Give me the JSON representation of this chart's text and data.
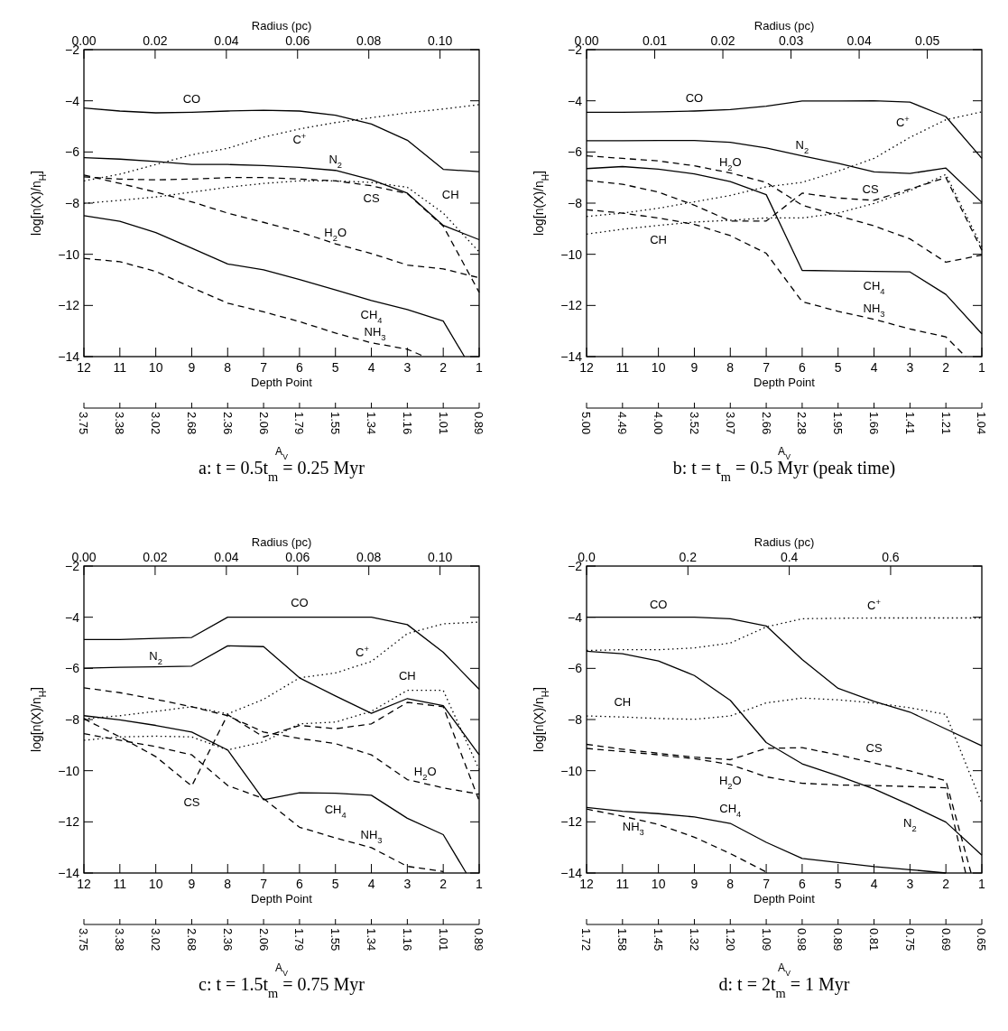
{
  "chart_data": [
    {
      "type": "line",
      "title": "a:    t = 0.5t$_{m}$ = 0.25 Myr",
      "xlabel": "Depth Point",
      "ylabel": "log[n(X)/n$_{H}$]",
      "x2label": "Radius (pc)",
      "x": [
        12,
        11,
        10,
        9,
        8,
        7,
        6,
        5,
        4,
        3,
        2,
        1
      ],
      "xlim": [
        12,
        1
      ],
      "xticks": [
        12,
        11,
        10,
        9,
        8,
        7,
        6,
        5,
        4,
        3,
        2,
        1
      ],
      "x2lim": [
        0,
        0.111
      ],
      "x2ticks": [
        {
          "value": 0,
          "label": "0.00"
        },
        {
          "value": 0.02,
          "label": "0.02"
        },
        {
          "value": 0.04,
          "label": "0.04"
        },
        {
          "value": 0.06,
          "label": "0.06"
        },
        {
          "value": 0.08,
          "label": "0.08"
        },
        {
          "value": 0.1,
          "label": "0.10"
        }
      ],
      "ylim": [
        -14,
        -2
      ],
      "yticks": [
        -14,
        -12,
        -10,
        -8,
        -6,
        -4,
        -2
      ],
      "series": [
        {
          "name": "CO",
          "color": "#000000",
          "line_style": "solid",
          "values": [
            -4.28,
            -4.4,
            -4.47,
            -4.45,
            -4.4,
            -4.37,
            -4.4,
            -4.56,
            -4.91,
            -5.54,
            -6.68,
            -6.77
          ]
        },
        {
          "name": "N$_{2}$",
          "color": "#000000",
          "line_style": "solid",
          "values": [
            -6.22,
            -6.28,
            -6.37,
            -6.49,
            -6.49,
            -6.53,
            -6.6,
            -6.72,
            -7.09,
            -7.61,
            -8.87,
            -9.43
          ]
        },
        {
          "name": "CH$_{4}$",
          "color": "#000000",
          "line_style": "solid",
          "x": [
            12,
            11,
            10,
            9,
            8,
            7,
            6,
            5,
            4,
            3,
            2,
            1.41
          ],
          "values": [
            -8.49,
            -8.71,
            -9.15,
            -9.76,
            -10.38,
            -10.61,
            -10.99,
            -11.39,
            -11.81,
            -12.16,
            -12.61,
            -14
          ]
        },
        {
          "name": "C$^{+}$",
          "color": "#000000",
          "line_style": "dotted",
          "values": [
            -7.13,
            -6.87,
            -6.49,
            -6.11,
            -5.86,
            -5.42,
            -5.1,
            -4.85,
            -4.66,
            -4.47,
            -4.32,
            -4.15
          ]
        },
        {
          "name": "CH",
          "color": "#000000",
          "line_style": "dotted",
          "values": [
            -8.01,
            -7.89,
            -7.76,
            -7.57,
            -7.38,
            -7.23,
            -7.13,
            -7.13,
            -7.19,
            -7.38,
            -8.39,
            -9.91
          ]
        },
        {
          "name": "CS",
          "color": "#000000",
          "line_style": "dashed",
          "values": [
            -6.97,
            -7.06,
            -7.09,
            -7.06,
            -7.0,
            -7.0,
            -7.06,
            -7.13,
            -7.32,
            -7.63,
            -8.9,
            -11.49
          ]
        },
        {
          "name": "H$_{2}$O",
          "color": "#000000",
          "line_style": "dashed",
          "values": [
            -6.9,
            -7.23,
            -7.57,
            -7.95,
            -8.39,
            -8.75,
            -9.13,
            -9.59,
            -9.97,
            -10.42,
            -10.57,
            -10.92
          ]
        },
        {
          "name": "NH$_{3}$",
          "color": "#000000",
          "line_style": "dashed",
          "x": [
            12,
            11,
            10,
            9,
            8,
            7,
            6,
            5,
            4,
            3,
            2.52
          ],
          "values": [
            -10.16,
            -10.29,
            -10.67,
            -11.3,
            -11.91,
            -12.25,
            -12.63,
            -13.08,
            -13.46,
            -13.71,
            -14
          ]
        }
      ]
    },
    {
      "type": "other",
      "xlabel": "A$_{V}$",
      "categories": [
        "3.75",
        "3.38",
        "3.02",
        "2.68",
        "2.36",
        "2.06",
        "1.79",
        "1.55",
        "1.34",
        "1.16",
        "1.01",
        "0.89"
      ]
    },
    {
      "type": "line",
      "title": "b:    t = t$_{m}$ = 0.5 Myr (peak time)",
      "xlabel": "Depth Point",
      "ylabel": "log[n(X)/n$_{H}$]",
      "x2label": "Radius (pc)",
      "x": [
        12,
        11,
        10,
        9,
        8,
        7,
        6,
        5,
        4,
        3,
        2,
        1
      ],
      "xlim": [
        12,
        1
      ],
      "xticks": [
        12,
        11,
        10,
        9,
        8,
        7,
        6,
        5,
        4,
        3,
        2,
        1
      ],
      "x2lim": [
        0,
        0.058
      ],
      "x2ticks": [
        {
          "value": 0,
          "label": "0.00"
        },
        {
          "value": 0.01,
          "label": "0.01"
        },
        {
          "value": 0.02,
          "label": "0.02"
        },
        {
          "value": 0.03,
          "label": "0.03"
        },
        {
          "value": 0.04,
          "label": "0.04"
        },
        {
          "value": 0.05,
          "label": "0.05"
        }
      ],
      "ylim": [
        -14,
        -2
      ],
      "yticks": [
        -14,
        -12,
        -10,
        -8,
        -6,
        -4,
        -2
      ],
      "series": [
        {
          "name": "CO",
          "color": "#000000",
          "line_style": "solid",
          "values": [
            -4.45,
            -4.45,
            -4.43,
            -4.4,
            -4.34,
            -4.21,
            -4.01,
            -4.01,
            -4.0,
            -4.05,
            -4.62,
            -6.25
          ]
        },
        {
          "name": "N$_{2}$",
          "color": "#000000",
          "line_style": "solid",
          "values": [
            -5.56,
            -5.56,
            -5.55,
            -5.55,
            -5.62,
            -5.84,
            -6.15,
            -6.44,
            -6.78,
            -6.84,
            -6.63,
            -7.97
          ]
        },
        {
          "name": "CH$_{4}$",
          "color": "#000000",
          "line_style": "solid",
          "values": [
            -6.65,
            -6.57,
            -6.67,
            -6.86,
            -7.16,
            -7.67,
            -10.63,
            -10.65,
            -10.67,
            -10.69,
            -11.57,
            -13.11
          ]
        },
        {
          "name": "C$^{+}$",
          "color": "#000000",
          "line_style": "dotted",
          "values": [
            -8.52,
            -8.39,
            -8.2,
            -7.95,
            -7.7,
            -7.36,
            -7.19,
            -6.75,
            -6.25,
            -5.43,
            -4.74,
            -4.43
          ]
        },
        {
          "name": "CH",
          "color": "#000000",
          "line_style": "dotted",
          "values": [
            -9.21,
            -9.02,
            -8.87,
            -8.74,
            -8.67,
            -8.58,
            -8.58,
            -8.39,
            -8.01,
            -7.51,
            -6.88,
            -9.71
          ]
        },
        {
          "name": "CS",
          "color": "#000000",
          "line_style": "dashed",
          "values": [
            -7.11,
            -7.26,
            -7.57,
            -8.08,
            -8.7,
            -8.7,
            -7.61,
            -7.8,
            -7.89,
            -7.45,
            -7.0,
            -9.84
          ]
        },
        {
          "name": "H$_{2}$O",
          "color": "#000000",
          "line_style": "dashed",
          "values": [
            -6.15,
            -6.25,
            -6.35,
            -6.54,
            -6.82,
            -7.19,
            -8.08,
            -8.49,
            -8.89,
            -9.4,
            -10.31,
            -10.03
          ]
        },
        {
          "name": "NH$_{3}$",
          "color": "#000000",
          "line_style": "dashed",
          "x": [
            12,
            11,
            10,
            9,
            8,
            7,
            6,
            5,
            4,
            3,
            2,
            1.45
          ],
          "values": [
            -8.26,
            -8.39,
            -8.58,
            -8.83,
            -9.27,
            -9.96,
            -11.85,
            -12.23,
            -12.54,
            -12.92,
            -13.23,
            -14
          ]
        }
      ]
    },
    {
      "type": "other",
      "xlabel": "A$_{V}$",
      "categories": [
        "5.00",
        "4.49",
        "4.00",
        "3.52",
        "3.07",
        "2.66",
        "2.28",
        "1.95",
        "1.66",
        "1.41",
        "1.21",
        "1.04"
      ]
    },
    {
      "type": "line",
      "title": "c:    t = 1.5t$_{m}$ = 0.75 Myr",
      "xlabel": "Depth Point",
      "ylabel": "log[n(X)/n$_{H}$]",
      "x2label": "Radius (pc)",
      "x": [
        12,
        11,
        10,
        9,
        8,
        7,
        6,
        5,
        4,
        3,
        2,
        1
      ],
      "xlim": [
        12,
        1
      ],
      "xticks": [
        12,
        11,
        10,
        9,
        8,
        7,
        6,
        5,
        4,
        3,
        2,
        1
      ],
      "x2lim": [
        0,
        0.111
      ],
      "x2ticks": [
        {
          "value": 0,
          "label": "0.00"
        },
        {
          "value": 0.02,
          "label": "0.02"
        },
        {
          "value": 0.04,
          "label": "0.04"
        },
        {
          "value": 0.06,
          "label": "0.06"
        },
        {
          "value": 0.08,
          "label": "0.08"
        },
        {
          "value": 0.1,
          "label": "0.10"
        }
      ],
      "ylim": [
        -14,
        -2
      ],
      "yticks": [
        -14,
        -12,
        -10,
        -8,
        -6,
        -4,
        -2
      ],
      "series": [
        {
          "name": "CO",
          "color": "#000000",
          "line_style": "solid",
          "values": [
            -4.87,
            -4.87,
            -4.83,
            -4.79,
            -4.0,
            -4.0,
            -4.0,
            -4.0,
            -4.0,
            -4.29,
            -5.37,
            -6.82
          ]
        },
        {
          "name": "N$_{2}$",
          "color": "#000000",
          "line_style": "solid",
          "values": [
            -5.99,
            -5.96,
            -5.94,
            -5.91,
            -5.12,
            -5.15,
            -6.37,
            -7.08,
            -7.76,
            -7.18,
            -7.46,
            -9.38
          ]
        },
        {
          "name": "CH$_{4}$",
          "color": "#000000",
          "line_style": "solid",
          "x": [
            12,
            11,
            10,
            9,
            8,
            7,
            6,
            5,
            4,
            3,
            2,
            1.36
          ],
          "values": [
            -7.85,
            -8.01,
            -8.23,
            -8.49,
            -9.19,
            -11.14,
            -10.86,
            -10.88,
            -10.96,
            -11.86,
            -12.5,
            -14
          ]
        },
        {
          "name": "C$^{+}$",
          "color": "#000000",
          "line_style": "dotted",
          "values": [
            -7.97,
            -7.85,
            -7.68,
            -7.5,
            -7.78,
            -7.21,
            -6.37,
            -6.18,
            -5.73,
            -4.64,
            -4.26,
            -4.19
          ]
        },
        {
          "name": "CH",
          "color": "#000000",
          "line_style": "dotted",
          "values": [
            -8.81,
            -8.68,
            -8.65,
            -8.68,
            -9.19,
            -8.87,
            -8.17,
            -8.1,
            -7.68,
            -6.86,
            -6.86,
            -9.96
          ]
        },
        {
          "name": "CS",
          "color": "#000000",
          "line_style": "dashed",
          "values": [
            -7.97,
            -8.68,
            -9.45,
            -10.6,
            -7.81,
            -8.68,
            -8.23,
            -8.36,
            -8.17,
            -7.33,
            -7.5,
            -11.18
          ]
        },
        {
          "name": "H$_{2}$O",
          "color": "#000000",
          "line_style": "dashed",
          "values": [
            -6.76,
            -6.95,
            -7.21,
            -7.5,
            -7.85,
            -8.49,
            -8.74,
            -8.94,
            -9.38,
            -10.35,
            -10.67,
            -10.92
          ]
        },
        {
          "name": "NH$_{3}$",
          "color": "#000000",
          "line_style": "dashed",
          "x": [
            12,
            11,
            10,
            9,
            8,
            7,
            6,
            5,
            4,
            3,
            2
          ],
          "values": [
            -8.55,
            -8.81,
            -9.06,
            -9.38,
            -10.58,
            -11.09,
            -12.21,
            -12.63,
            -13.01,
            -13.74,
            -13.94
          ]
        }
      ]
    },
    {
      "type": "other",
      "xlabel": "A$_{V}$",
      "categories": [
        "3.75",
        "3.38",
        "3.02",
        "2.68",
        "2.36",
        "2.06",
        "1.79",
        "1.55",
        "1.34",
        "1.16",
        "1.01",
        "0.89"
      ]
    },
    {
      "type": "line",
      "title": "d:    t = 2t$_{m}$ = 1 Myr",
      "xlabel": "Depth Point",
      "ylabel": "log[n(X)/n$_{H}$]",
      "x2label": "Radius (pc)",
      "x": [
        12,
        11,
        10,
        9,
        8,
        7,
        6,
        5,
        4,
        3,
        2,
        1
      ],
      "xlim": [
        12,
        1
      ],
      "xticks": [
        12,
        11,
        10,
        9,
        8,
        7,
        6,
        5,
        4,
        3,
        2,
        1
      ],
      "x2lim": [
        0,
        0.78
      ],
      "x2ticks": [
        {
          "value": 0,
          "label": "0.0"
        },
        {
          "value": 0.2,
          "label": "0.2"
        },
        {
          "value": 0.4,
          "label": "0.4"
        },
        {
          "value": 0.6,
          "label": "0.6"
        }
      ],
      "ylim": [
        -14,
        -2
      ],
      "yticks": [
        -14,
        -12,
        -10,
        -8,
        -6,
        -4,
        -2
      ],
      "series": [
        {
          "name": "CO",
          "color": "#000000",
          "line_style": "solid",
          "values": [
            -4.0,
            -4.0,
            -4.0,
            -4.0,
            -4.06,
            -4.34,
            -5.65,
            -6.78,
            -7.29,
            -7.71,
            -8.37,
            -9.03
          ]
        },
        {
          "name": "N$_{2}$",
          "color": "#000000",
          "line_style": "solid",
          "values": [
            -5.33,
            -5.43,
            -5.71,
            -6.28,
            -7.25,
            -8.9,
            -9.73,
            -10.2,
            -10.71,
            -11.34,
            -12.01,
            -13.3
          ]
        },
        {
          "name": "CH$_{4}$",
          "color": "#000000",
          "line_style": "solid",
          "x": [
            12,
            11,
            10,
            9,
            8,
            7,
            6,
            5,
            4,
            3,
            2
          ],
          "values": [
            -11.44,
            -11.59,
            -11.68,
            -11.81,
            -12.06,
            -12.8,
            -13.43,
            -13.59,
            -13.75,
            -13.87,
            -14.0
          ]
        },
        {
          "name": "C$^{+}$",
          "color": "#000000",
          "line_style": "dotted",
          "values": [
            -5.3,
            -5.27,
            -5.27,
            -5.2,
            -5.01,
            -4.38,
            -4.06,
            -4.04,
            -4.03,
            -4.03,
            -4.03,
            -4.03
          ]
        },
        {
          "name": "CH",
          "color": "#000000",
          "line_style": "dotted",
          "values": [
            -7.86,
            -7.9,
            -7.96,
            -7.99,
            -7.86,
            -7.35,
            -7.16,
            -7.23,
            -7.35,
            -7.54,
            -7.8,
            -11.28
          ]
        },
        {
          "name": "CS",
          "color": "#000000",
          "line_style": "dashed",
          "x": [
            12,
            11,
            10,
            9,
            8,
            7,
            6,
            5,
            4,
            3,
            2,
            1.3
          ],
          "values": [
            -8.97,
            -9.16,
            -9.32,
            -9.47,
            -9.57,
            -9.13,
            -9.1,
            -9.38,
            -9.7,
            -10.01,
            -10.39,
            -14
          ]
        },
        {
          "name": "H$_{2}$O",
          "color": "#000000",
          "line_style": "dashed",
          "x": [
            12,
            11,
            10,
            9,
            8,
            7,
            6,
            5,
            4,
            3,
            2,
            1.45
          ],
          "values": [
            -9.13,
            -9.25,
            -9.38,
            -9.53,
            -9.76,
            -10.24,
            -10.49,
            -10.56,
            -10.58,
            -10.62,
            -10.67,
            -14
          ]
        },
        {
          "name": "NH$_{3}$",
          "color": "#000000",
          "line_style": "dashed",
          "x": [
            12,
            11,
            10,
            9,
            8,
            7
          ],
          "values": [
            -11.5,
            -11.78,
            -12.1,
            -12.6,
            -13.24,
            -13.96
          ]
        }
      ]
    },
    {
      "type": "other",
      "xlabel": "A$_{V}$",
      "categories": [
        "1.72",
        "1.58",
        "1.45",
        "1.32",
        "1.20",
        "1.09",
        "0.98",
        "0.89",
        "0.81",
        "0.75",
        "0.69",
        "0.65"
      ]
    }
  ]
}
